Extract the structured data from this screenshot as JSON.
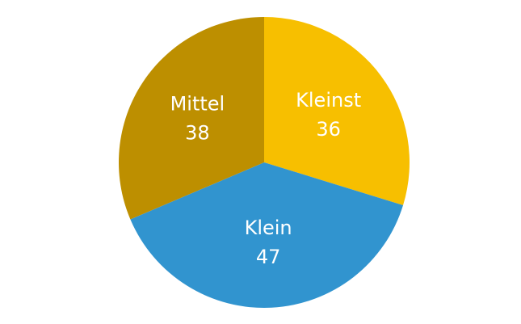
{
  "chart_data": {
    "type": "pie",
    "categories": [
      "Kleinst",
      "Klein",
      "Mittel"
    ],
    "values": [
      36,
      47,
      38
    ],
    "colors": [
      "#f7bf00",
      "#3194cf",
      "#bd8f00"
    ]
  }
}
